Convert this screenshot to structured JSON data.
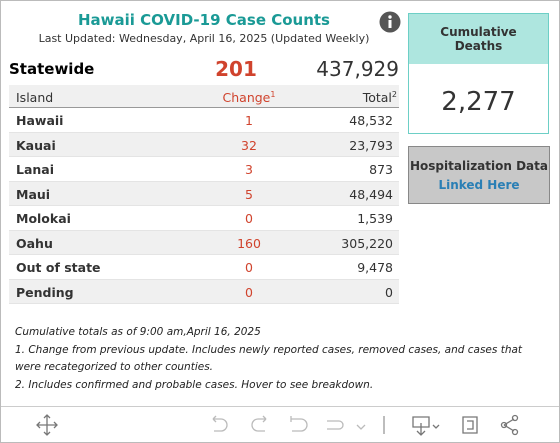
{
  "header": {
    "title": "Hawaii COVID-19 Case Counts",
    "updated": "Last Updated: Wednesday, April 16, 2025 (Updated Weekly)"
  },
  "summary": {
    "label": "Statewide",
    "change": "201",
    "total": "437,929"
  },
  "table": {
    "columns": [
      "Island",
      "Change",
      "Total"
    ],
    "footnote_marks": [
      "1",
      "2"
    ],
    "rows": [
      [
        "Hawaii",
        "1",
        "48,532"
      ],
      [
        "Kauai",
        "32",
        "23,793"
      ],
      [
        "Lanai",
        "3",
        "873"
      ],
      [
        "Maui",
        "5",
        "48,494"
      ],
      [
        "Molokai",
        "0",
        "1,539"
      ],
      [
        "Oahu",
        "160",
        "305,220"
      ],
      [
        "Out of state",
        "0",
        "9,478"
      ],
      [
        "Pending",
        "0",
        "0"
      ]
    ]
  },
  "notes": [
    "Cumulative totals as of 9:00 am,April 16, 2025",
    "1. Change from previous update. Includes newly reported cases, removed cases, and cases that were recategorized to other counties.",
    "2. Includes confirmed and probable cases. Hover to see breakdown."
  ],
  "side": {
    "deaths_title": "Cumulative Deaths",
    "deaths_value": "2,277",
    "hospitalization_title": "Hospitalization Data",
    "hospitalization_link": "Linked Here"
  }
}
